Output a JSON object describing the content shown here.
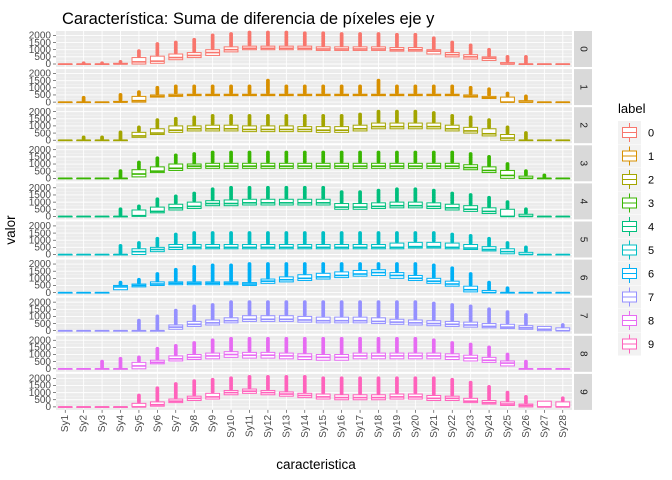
{
  "chart_data": {
    "type": "boxplot",
    "title": "Característica: Suma de diferencia de píxeles eje y",
    "xlabel": "caracteristica",
    "ylabel": "valor",
    "ylim": [
      0,
      2100
    ],
    "y_ticks": [
      0,
      500,
      1000,
      1500,
      2000
    ],
    "categories": [
      "Sy1",
      "Sy2",
      "Sy3",
      "Sy4",
      "Sy5",
      "Sy6",
      "Sy7",
      "Sy8",
      "Sy9",
      "Sy10",
      "Sy11",
      "Sy12",
      "Sy13",
      "Sy14",
      "Sy15",
      "Sy16",
      "Sy17",
      "Sy18",
      "Sy19",
      "Sy20",
      "Sy21",
      "Sy22",
      "Sy23",
      "Sy24",
      "Sy25",
      "Sy26",
      "Sy27",
      "Sy28"
    ],
    "legend": {
      "title": "label",
      "position": "right",
      "items": [
        {
          "label": "0",
          "color": "#F8766D"
        },
        {
          "label": "1",
          "color": "#D89000"
        },
        {
          "label": "2",
          "color": "#A3A500"
        },
        {
          "label": "3",
          "color": "#39B600"
        },
        {
          "label": "4",
          "color": "#00BF7D"
        },
        {
          "label": "5",
          "color": "#00BFC4"
        },
        {
          "label": "6",
          "color": "#00B0F6"
        },
        {
          "label": "7",
          "color": "#9590FF"
        },
        {
          "label": "8",
          "color": "#E76BF3"
        },
        {
          "label": "9",
          "color": "#FF62BC"
        }
      ]
    },
    "grid": true,
    "panels": [
      {
        "label": "0",
        "medians": [
          0,
          0,
          0,
          0,
          150,
          200,
          450,
          600,
          800,
          1000,
          1100,
          1100,
          1100,
          1100,
          1050,
          1050,
          1050,
          1050,
          1000,
          1000,
          900,
          650,
          500,
          400,
          0,
          0,
          0,
          0
        ],
        "box_lows": [
          0,
          0,
          0,
          0,
          0,
          50,
          300,
          450,
          600,
          850,
          1000,
          1000,
          1000,
          1000,
          950,
          950,
          950,
          950,
          900,
          900,
          700,
          500,
          350,
          250,
          0,
          0,
          0,
          0
        ],
        "box_highs": [
          0,
          0,
          0,
          50,
          450,
          550,
          700,
          800,
          1000,
          1200,
          1250,
          1250,
          1250,
          1250,
          1200,
          1200,
          1200,
          1200,
          1150,
          1150,
          1000,
          800,
          650,
          500,
          100,
          0,
          0,
          0
        ],
        "whisker_highs": [
          0,
          50,
          50,
          150,
          900,
          1400,
          1500,
          1700,
          2000,
          2100,
          2200,
          2200,
          2200,
          2150,
          2150,
          2100,
          2100,
          2100,
          2050,
          2050,
          1800,
          1500,
          1300,
          1000,
          500,
          500,
          0,
          0
        ]
      },
      {
        "label": "1",
        "medians": [
          0,
          0,
          0,
          0,
          100,
          400,
          450,
          500,
          500,
          500,
          500,
          500,
          500,
          500,
          500,
          500,
          500,
          500,
          500,
          500,
          500,
          500,
          400,
          300,
          0,
          0,
          0,
          0
        ],
        "box_lows": [
          0,
          0,
          0,
          0,
          0,
          350,
          400,
          450,
          450,
          450,
          450,
          450,
          450,
          450,
          450,
          450,
          450,
          450,
          450,
          450,
          450,
          450,
          350,
          250,
          0,
          0,
          0,
          0
        ],
        "box_highs": [
          0,
          0,
          0,
          50,
          400,
          500,
          550,
          550,
          550,
          550,
          550,
          550,
          550,
          550,
          550,
          550,
          550,
          550,
          550,
          550,
          550,
          550,
          500,
          400,
          350,
          100,
          0,
          0
        ],
        "whisker_highs": [
          0,
          300,
          0,
          500,
          700,
          1000,
          1100,
          1100,
          1100,
          1100,
          1100,
          1500,
          1100,
          1100,
          1100,
          1100,
          1100,
          1500,
          1100,
          1100,
          1100,
          1100,
          1000,
          900,
          600,
          400,
          0,
          0
        ]
      },
      {
        "label": "2",
        "medians": [
          0,
          0,
          0,
          0,
          300,
          500,
          700,
          800,
          800,
          800,
          750,
          750,
          750,
          750,
          700,
          700,
          800,
          950,
          950,
          950,
          950,
          800,
          650,
          450,
          150,
          0,
          0,
          0
        ],
        "box_lows": [
          0,
          0,
          0,
          0,
          200,
          400,
          550,
          650,
          650,
          650,
          600,
          600,
          600,
          600,
          550,
          550,
          650,
          800,
          800,
          800,
          800,
          650,
          500,
          300,
          0,
          0,
          0,
          0
        ],
        "box_highs": [
          0,
          0,
          0,
          0,
          550,
          800,
          1000,
          1000,
          1050,
          1050,
          1000,
          1000,
          1000,
          950,
          950,
          950,
          1050,
          1200,
          1200,
          1200,
          1200,
          1050,
          900,
          800,
          400,
          0,
          0,
          0
        ],
        "whisker_highs": [
          0,
          200,
          200,
          550,
          900,
          1400,
          1500,
          1600,
          1700,
          1700,
          1700,
          1700,
          1700,
          1700,
          1700,
          1700,
          1800,
          2000,
          2000,
          2000,
          1900,
          1700,
          1600,
          1400,
          900,
          500,
          0,
          0
        ]
      },
      {
        "label": "3",
        "medians": [
          0,
          0,
          0,
          0,
          300,
          500,
          700,
          850,
          850,
          850,
          850,
          850,
          850,
          850,
          850,
          850,
          850,
          850,
          850,
          850,
          850,
          850,
          750,
          550,
          200,
          0,
          0,
          0
        ],
        "box_lows": [
          0,
          0,
          0,
          0,
          100,
          400,
          550,
          700,
          700,
          700,
          700,
          700,
          700,
          700,
          700,
          700,
          700,
          700,
          700,
          700,
          700,
          700,
          600,
          400,
          0,
          0,
          0,
          0
        ],
        "box_highs": [
          0,
          0,
          0,
          0,
          600,
          800,
          1000,
          1000,
          1050,
          1050,
          1050,
          1050,
          1050,
          1050,
          1050,
          1050,
          1050,
          1050,
          1050,
          1050,
          1050,
          1050,
          950,
          800,
          550,
          150,
          0,
          0
        ],
        "whisker_highs": [
          0,
          0,
          0,
          500,
          1100,
          1400,
          1600,
          1700,
          1800,
          1800,
          1800,
          1800,
          1800,
          1800,
          1800,
          1800,
          1800,
          1800,
          1800,
          1800,
          1800,
          1800,
          1700,
          1500,
          1000,
          500,
          200,
          0
        ]
      },
      {
        "label": "4",
        "medians": [
          0,
          0,
          0,
          0,
          50,
          350,
          600,
          700,
          900,
          900,
          950,
          950,
          950,
          950,
          950,
          650,
          650,
          700,
          750,
          750,
          700,
          600,
          500,
          350,
          0,
          0,
          0,
          0
        ],
        "box_lows": [
          0,
          0,
          0,
          0,
          0,
          250,
          450,
          550,
          750,
          750,
          800,
          800,
          800,
          800,
          800,
          500,
          500,
          550,
          600,
          600,
          550,
          450,
          350,
          200,
          0,
          0,
          0,
          0
        ],
        "box_highs": [
          0,
          0,
          0,
          0,
          450,
          650,
          850,
          1000,
          1100,
          1150,
          1200,
          1200,
          1200,
          1200,
          1200,
          900,
          900,
          950,
          1000,
          1000,
          950,
          850,
          750,
          600,
          500,
          150,
          0,
          0
        ],
        "whisker_highs": [
          0,
          0,
          0,
          500,
          700,
          1200,
          1400,
          1600,
          1900,
          2000,
          2000,
          2000,
          2000,
          2000,
          2000,
          1700,
          1700,
          1800,
          1900,
          1900,
          1800,
          1600,
          1500,
          1300,
          1000,
          500,
          0,
          0
        ]
      },
      {
        "label": "5",
        "medians": [
          0,
          0,
          0,
          0,
          200,
          350,
          500,
          500,
          500,
          500,
          500,
          500,
          500,
          500,
          500,
          500,
          500,
          500,
          500,
          550,
          550,
          500,
          450,
          350,
          200,
          0,
          0,
          0
        ],
        "box_lows": [
          0,
          0,
          0,
          0,
          0,
          200,
          350,
          400,
          400,
          400,
          400,
          400,
          400,
          400,
          400,
          400,
          400,
          400,
          400,
          450,
          450,
          400,
          350,
          250,
          50,
          0,
          0,
          0
        ],
        "box_highs": [
          0,
          0,
          0,
          0,
          400,
          500,
          700,
          700,
          700,
          700,
          700,
          700,
          700,
          700,
          700,
          700,
          700,
          700,
          800,
          850,
          850,
          800,
          700,
          550,
          400,
          150,
          0,
          0
        ],
        "whisker_highs": [
          0,
          0,
          0,
          600,
          800,
          1100,
          1400,
          1500,
          1500,
          1500,
          1500,
          1500,
          1500,
          1500,
          1500,
          1500,
          1500,
          1500,
          1500,
          1500,
          1500,
          1400,
          1300,
          1100,
          800,
          500,
          0,
          0
        ]
      },
      {
        "label": "6",
        "medians": [
          0,
          0,
          0,
          400,
          500,
          600,
          650,
          650,
          650,
          650,
          600,
          800,
          900,
          1000,
          1100,
          1200,
          1300,
          1400,
          1200,
          1000,
          800,
          600,
          200,
          0,
          0,
          0,
          0,
          0
        ],
        "box_lows": [
          0,
          0,
          0,
          200,
          400,
          500,
          550,
          550,
          550,
          550,
          500,
          650,
          750,
          850,
          950,
          1050,
          1150,
          1200,
          1000,
          850,
          650,
          450,
          50,
          0,
          0,
          0,
          0,
          0
        ],
        "box_highs": [
          0,
          0,
          0,
          500,
          600,
          750,
          750,
          750,
          750,
          750,
          700,
          950,
          1100,
          1250,
          1350,
          1450,
          1550,
          1600,
          1400,
          1200,
          1000,
          800,
          450,
          150,
          0,
          0,
          0,
          0
        ],
        "whisker_highs": [
          0,
          0,
          0,
          700,
          900,
          1300,
          1600,
          1800,
          1900,
          1900,
          2000,
          2000,
          2000,
          2000,
          2000,
          2000,
          2000,
          2000,
          2000,
          2000,
          1900,
          1700,
          1300,
          700,
          300,
          0,
          0,
          0
        ]
      },
      {
        "label": "7",
        "medians": [
          0,
          0,
          0,
          0,
          0,
          0,
          250,
          450,
          550,
          700,
          800,
          800,
          800,
          750,
          700,
          700,
          700,
          650,
          600,
          550,
          500,
          450,
          400,
          300,
          250,
          200,
          100,
          0
        ],
        "box_lows": [
          0,
          0,
          0,
          0,
          0,
          0,
          100,
          300,
          400,
          550,
          650,
          650,
          650,
          600,
          550,
          550,
          550,
          500,
          450,
          400,
          350,
          300,
          250,
          200,
          150,
          100,
          0,
          0
        ],
        "box_highs": [
          0,
          0,
          0,
          0,
          0,
          0,
          400,
          650,
          750,
          900,
          1050,
          1050,
          1050,
          1000,
          950,
          950,
          950,
          900,
          800,
          750,
          700,
          650,
          600,
          500,
          450,
          350,
          300,
          200
        ],
        "whisker_highs": [
          0,
          0,
          0,
          0,
          700,
          1000,
          1400,
          1700,
          1800,
          2000,
          2000,
          2000,
          2000,
          2000,
          2000,
          2000,
          2000,
          2000,
          2000,
          2000,
          1900,
          1800,
          1700,
          1500,
          1300,
          1100,
          0,
          400
        ]
      },
      {
        "label": "8",
        "medians": [
          0,
          0,
          0,
          0,
          200,
          450,
          700,
          800,
          900,
          1000,
          950,
          950,
          900,
          850,
          800,
          800,
          900,
          900,
          900,
          900,
          900,
          850,
          750,
          600,
          400,
          0,
          0,
          0
        ],
        "box_lows": [
          0,
          0,
          0,
          0,
          0,
          350,
          550,
          650,
          700,
          800,
          750,
          750,
          700,
          650,
          600,
          600,
          700,
          700,
          700,
          700,
          700,
          650,
          550,
          450,
          200,
          0,
          0,
          0
        ],
        "box_highs": [
          0,
          0,
          0,
          0,
          450,
          600,
          900,
          1000,
          1100,
          1200,
          1150,
          1150,
          1100,
          1050,
          1000,
          1000,
          1100,
          1100,
          1100,
          1100,
          1100,
          1050,
          950,
          800,
          550,
          0,
          0,
          0
        ],
        "whisker_highs": [
          0,
          0,
          500,
          700,
          800,
          1400,
          1600,
          1800,
          2000,
          2100,
          2100,
          2100,
          2100,
          2100,
          2100,
          2100,
          2100,
          2100,
          2100,
          2100,
          2000,
          1800,
          1700,
          1500,
          1000,
          500,
          0,
          0
        ]
      },
      {
        "label": "9",
        "medians": [
          0,
          0,
          0,
          0,
          0,
          150,
          400,
          600,
          700,
          1000,
          1100,
          1000,
          900,
          800,
          700,
          650,
          650,
          650,
          700,
          700,
          600,
          600,
          400,
          300,
          200,
          100,
          0,
          0
        ],
        "box_lows": [
          0,
          0,
          0,
          0,
          0,
          50,
          300,
          450,
          550,
          850,
          950,
          850,
          750,
          650,
          550,
          500,
          500,
          500,
          550,
          550,
          450,
          450,
          300,
          200,
          100,
          0,
          0,
          0
        ],
        "box_highs": [
          0,
          0,
          0,
          0,
          250,
          350,
          550,
          750,
          950,
          1150,
          1250,
          1150,
          1050,
          950,
          900,
          850,
          850,
          850,
          900,
          900,
          800,
          750,
          600,
          450,
          350,
          200,
          400,
          350
        ],
        "whisker_highs": [
          0,
          0,
          0,
          0,
          800,
          1300,
          1600,
          1800,
          1900,
          2000,
          2100,
          2100,
          2100,
          2100,
          2000,
          2000,
          2000,
          2000,
          2000,
          2000,
          2000,
          1900,
          1700,
          1400,
          1000,
          700,
          0,
          600
        ]
      }
    ]
  }
}
